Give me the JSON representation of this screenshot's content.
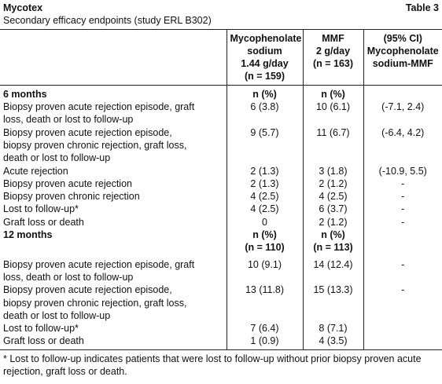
{
  "header": {
    "title": "Mycotex",
    "table_label": "Table 3",
    "subtitle": "Secondary efficacy endpoints (study ERL B302)"
  },
  "table": {
    "columns": [
      [
        "Mycophenolate",
        "sodium",
        "1.44 g/day",
        "(n = 159)"
      ],
      [
        "MMF",
        "2 g/day",
        "(n = 163)"
      ],
      [
        "(95% CI)",
        "Mycophenolate",
        "sodium-MMF"
      ]
    ],
    "sections": [
      {
        "label": "6 months",
        "cells": [
          [
            "n (%)"
          ],
          [
            "n (%)"
          ]
        ],
        "rows": [
          {
            "label": [
              "Biopsy proven acute rejection episode, graft",
              "loss, death or lost to follow-up"
            ],
            "cells": [
              "6 (3.8)",
              "10 (6.1)",
              "(-7.1, 2.4)"
            ]
          },
          {
            "label": [
              "Biopsy proven acute rejection episode,",
              "biopsy proven chronic rejection, graft loss,",
              "death or lost to follow-up"
            ],
            "cells": [
              "9 (5.7)",
              "11 (6.7)",
              "(-6.4, 4.2)"
            ]
          },
          {
            "label": [
              "Acute rejection"
            ],
            "cells": [
              "2 (1.3)",
              "3 (1.8)",
              "(-10.9, 5.5)"
            ]
          },
          {
            "label": [
              "Biopsy proven acute rejection"
            ],
            "cells": [
              "2 (1.3)",
              "2 (1.2)",
              "-"
            ]
          },
          {
            "label": [
              "Biopsy proven chronic rejection"
            ],
            "cells": [
              "4 (2.5)",
              "4 (2.5)",
              "-"
            ]
          },
          {
            "label": [
              "Lost to follow-up*"
            ],
            "cells": [
              "4 (2.5)",
              "6 (3.7)",
              "-"
            ]
          },
          {
            "label": [
              "Graft loss or death"
            ],
            "cells": [
              "0",
              "2 (1.2)",
              "-"
            ]
          }
        ]
      },
      {
        "label": "12 months",
        "cells": [
          [
            "n (%)",
            "(n = 110)"
          ],
          [
            "n (%)",
            "(n = 113)"
          ]
        ],
        "rows": [
          {
            "label": [
              "Biopsy proven acute rejection episode, graft",
              "loss, death or lost to follow-up"
            ],
            "cells": [
              "10 (9.1)",
              "14 (12.4)",
              "-"
            ]
          },
          {
            "label": [
              "Biopsy proven acute rejection episode,",
              "biopsy proven chronic rejection, graft loss,",
              "death or lost to follow-up"
            ],
            "cells": [
              "13 (11.8)",
              "15 (13.3)",
              "-"
            ]
          },
          {
            "label": [
              "Lost to follow-up*"
            ],
            "cells": [
              "7 (6.4)",
              "8 (7.1)"
            ]
          },
          {
            "label": [
              "Graft loss or death"
            ],
            "cells": [
              "1 (0.9)",
              "4 (3.5)"
            ]
          }
        ]
      }
    ]
  },
  "footnote": "* Lost to follow-up indicates patients that were lost to follow-up without prior biopsy proven acute rejection, graft loss or death."
}
